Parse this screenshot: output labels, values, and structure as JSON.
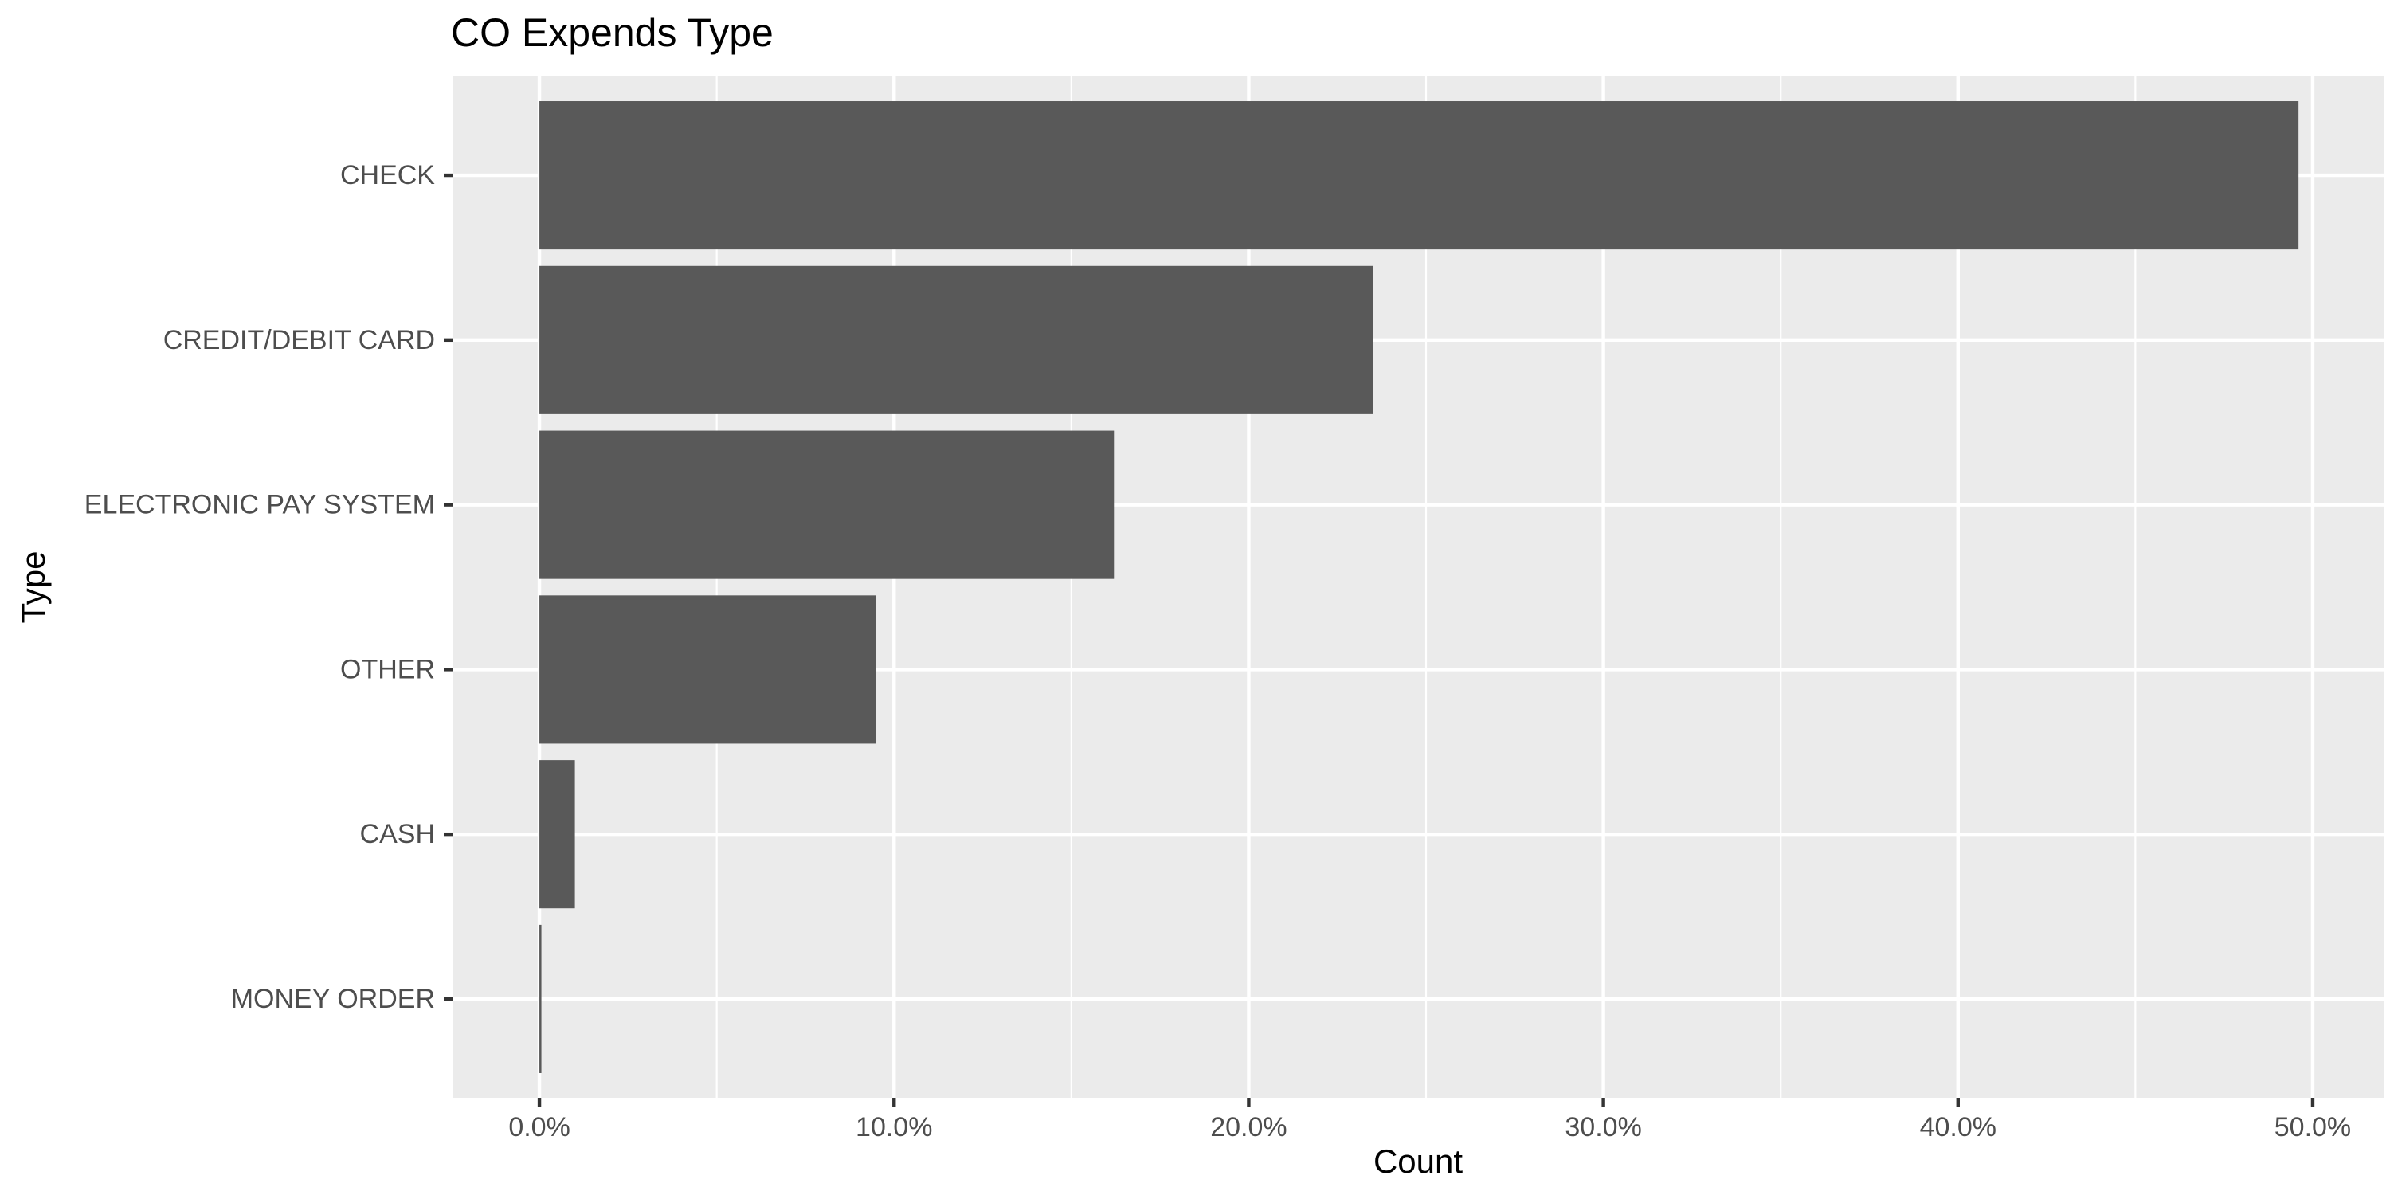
{
  "chart_data": {
    "type": "bar",
    "orientation": "horizontal",
    "title": "CO Expends Type",
    "xlabel": "Count",
    "ylabel": "Type",
    "categories": [
      "CHECK",
      "CREDIT/DEBIT CARD",
      "ELECTRONIC PAY SYSTEM",
      "OTHER",
      "CASH",
      "MONEY ORDER"
    ],
    "values": [
      0.496,
      0.235,
      0.162,
      0.095,
      0.01,
      0.0005
    ],
    "xlim": [
      -0.0245,
      0.52
    ],
    "xticks": [
      0,
      0.1,
      0.2,
      0.3,
      0.4,
      0.5
    ],
    "xtick_labels": [
      "0.0%",
      "10.0%",
      "20.0%",
      "30.0%",
      "40.0%",
      "50.0%"
    ],
    "grid": true,
    "legend": "none",
    "colors": {
      "bar": "#595959",
      "panel": "#ebebeb",
      "grid": "#ffffff",
      "background": "#ffffff"
    }
  }
}
